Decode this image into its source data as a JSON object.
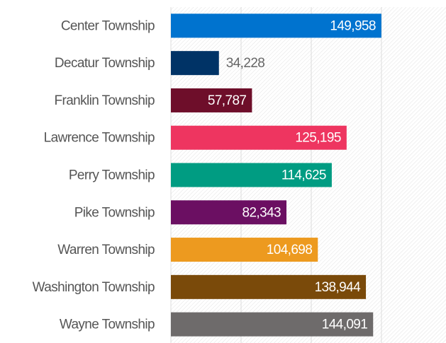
{
  "chart_data": {
    "type": "barh",
    "categories": [
      "Center Township",
      "Decatur Township",
      "Franklin Township",
      "Lawrence Township",
      "Perry Township",
      "Pike Township",
      "Warren Township",
      "Washington Township",
      "Wayne Township"
    ],
    "values": [
      149958,
      34228,
      57787,
      125195,
      114625,
      82343,
      104698,
      138944,
      144091
    ],
    "value_labels": [
      "149,958",
      "34,228",
      "57,787",
      "125,195",
      "114,625",
      "82,343",
      "104,698",
      "138,944",
      "144,091"
    ],
    "colors": [
      "#0073cf",
      "#003366",
      "#6e0e2a",
      "#ee3560",
      "#009c82",
      "#6b0f62",
      "#ed9a1f",
      "#7a4a0a",
      "#6e6b6b"
    ],
    "xlim": [
      0,
      196000
    ],
    "xticks": [
      0,
      50000,
      100000,
      150000
    ],
    "grid": true
  }
}
